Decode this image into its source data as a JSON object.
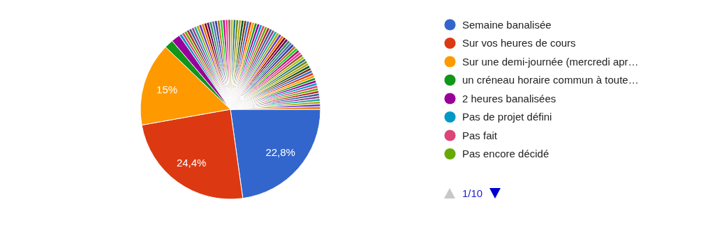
{
  "chart_data": {
    "type": "pie",
    "categories": [
      "Semaine banalisée",
      "Sur vos heures de cours",
      "Sur une demi-journée (mercredi apr…",
      "un créneau horaire commun à toute…",
      "2 heures banalisées",
      "Pas de projet défini",
      "Pas fait",
      "Pas encore décidé",
      null,
      null,
      null,
      null,
      null,
      null,
      null,
      null,
      null,
      null,
      null,
      null,
      null,
      null,
      null,
      null,
      null,
      null,
      null,
      null,
      null,
      null,
      null,
      null,
      null,
      null,
      null,
      null,
      null,
      null,
      null,
      null,
      null,
      null,
      null,
      null,
      null,
      null,
      null,
      null,
      null,
      null,
      null,
      null,
      null,
      null,
      null,
      null,
      null,
      null,
      null,
      null,
      null,
      null,
      null,
      null,
      null,
      null,
      null,
      null,
      null,
      null,
      null,
      null,
      null,
      null,
      null,
      null,
      null
    ],
    "values": [
      22.8,
      24.4,
      15,
      1.6,
      1.6,
      0.52,
      0.48,
      0.48,
      0.48,
      0.48,
      0.48,
      0.48,
      0.48,
      0.48,
      0.48,
      0.48,
      0.48,
      0.48,
      0.48,
      0.48,
      0.48,
      0.48,
      0.48,
      0.48,
      0.48,
      0.48,
      0.48,
      0.48,
      0.48,
      0.48,
      0.48,
      0.48,
      0.48,
      0.48,
      0.48,
      0.48,
      0.48,
      0.48,
      0.48,
      0.48,
      0.48,
      0.48,
      0.48,
      0.48,
      0.48,
      0.48,
      0.48,
      0.48,
      0.48,
      0.48,
      0.48,
      0.48,
      0.48,
      0.48,
      0.48,
      0.48,
      0.48,
      0.48,
      0.48,
      0.48,
      0.48,
      0.48,
      0.48,
      0.48,
      0.48,
      0.48,
      0.48,
      0.48,
      0.48,
      0.48,
      0.48,
      0.48,
      0.48,
      0.48,
      0.48,
      0.48,
      0.48
    ],
    "colors": [
      "#3366cc",
      "#dc3912",
      "#ff9900",
      "#109618",
      "#990099",
      "#0099c6",
      "#dd4477",
      "#66aa00",
      "#b82e2e",
      "#316395",
      "#994499",
      "#22aa99",
      "#aaaa11",
      "#6633cc",
      "#e67300",
      "#8b0707",
      "#651067",
      "#329262",
      "#5574a6",
      "#3b3eac",
      "#b77322",
      "#16d620",
      "#b91383",
      "#f4359e",
      "#9c5935",
      "#a9c413",
      "#2a778d",
      "#668d1c",
      "#bea413",
      "#0c5922",
      "#743411",
      "#3366cc",
      "#dc3912",
      "#ff9900",
      "#109618",
      "#990099",
      "#0099c6",
      "#dd4477",
      "#66aa00",
      "#b82e2e",
      "#316395",
      "#994499",
      "#22aa99",
      "#aaaa11",
      "#6633cc",
      "#e67300",
      "#8b0707",
      "#651067",
      "#329262",
      "#5574a6",
      "#3b3eac",
      "#b77322",
      "#16d620",
      "#b91383",
      "#f4359e",
      "#9c5935",
      "#a9c413",
      "#2a778d",
      "#668d1c",
      "#bea413",
      "#0c5922",
      "#743411",
      "#3366cc",
      "#dc3912",
      "#ff9900",
      "#109618",
      "#990099",
      "#0099c6",
      "#dd4477",
      "#66aa00",
      "#b82e2e",
      "#316395",
      "#994499",
      "#22aa99",
      "#aaaa11",
      "#6633cc",
      "#e67300"
    ],
    "value_labels": [
      "22,8%",
      "24,4%",
      "15%",
      null,
      null,
      null,
      null,
      null,
      null,
      null,
      null,
      null,
      null,
      null,
      null,
      null,
      null,
      null,
      null,
      null,
      null,
      null,
      null,
      null,
      null,
      null,
      null,
      null,
      null,
      null,
      null,
      null,
      null,
      null,
      null,
      null,
      null,
      null,
      null,
      null,
      null,
      null,
      null,
      null,
      null,
      null,
      null,
      null,
      null,
      null,
      null,
      null,
      null,
      null,
      null,
      null,
      null,
      null,
      null,
      null,
      null,
      null,
      null,
      null,
      null,
      null,
      null,
      null,
      null,
      null,
      null,
      null,
      null,
      null,
      null,
      null,
      null
    ],
    "legend": "right",
    "annotations": [
      "1/10"
    ]
  }
}
